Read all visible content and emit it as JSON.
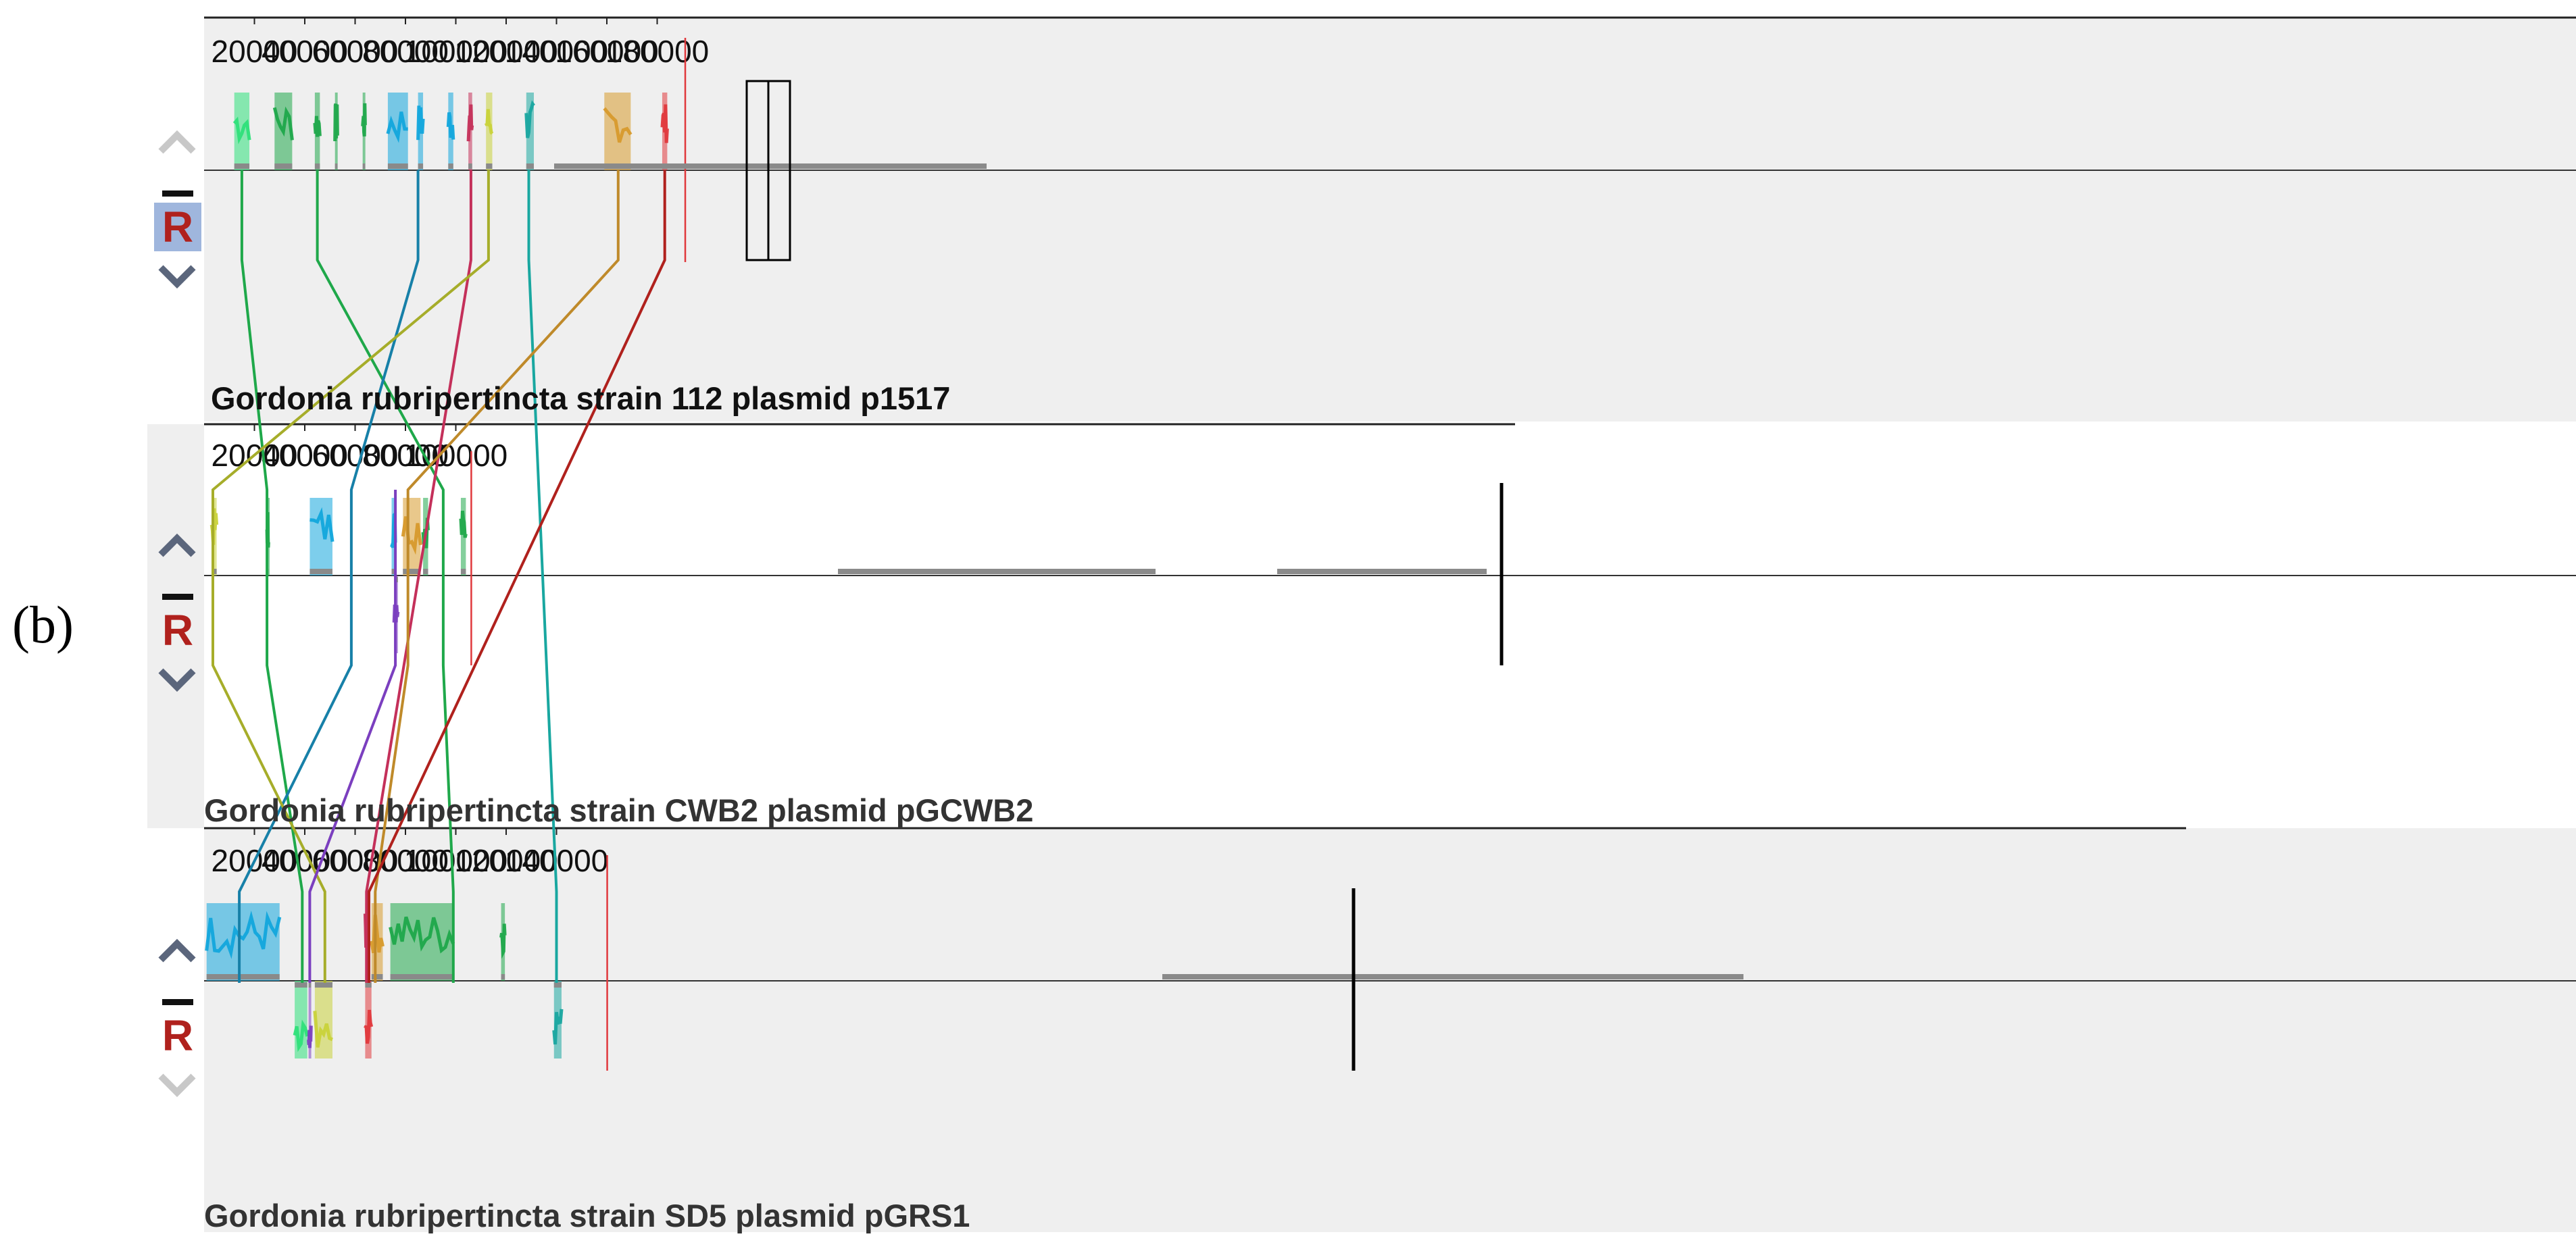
{
  "figure_label": "(b)",
  "control_labels": {
    "reorder": "R"
  },
  "tracks": [
    {
      "id": "p1517",
      "title": "Gordonia rubripertincta strain 112 plasmid p1517",
      "ticks": [
        "20000",
        "40000",
        "60000",
        "80000",
        "100000",
        "120000",
        "140000",
        "160000",
        "180000"
      ],
      "length_bp": 189000,
      "selected": true,
      "blocks": [
        {
          "color": "#2ee07a",
          "start": 12000,
          "end": 18000,
          "strand": "+"
        },
        {
          "color": "#1fa84a",
          "start": 28000,
          "end": 35000,
          "strand": "+"
        },
        {
          "color": "#1fa84a",
          "start": 44000,
          "end": 46000,
          "strand": "+"
        },
        {
          "color": "#1fa84a",
          "start": 52000,
          "end": 53000,
          "strand": "+"
        },
        {
          "color": "#1fa84a",
          "start": 63000,
          "end": 64000,
          "strand": "+"
        },
        {
          "color": "#12a6dc",
          "start": 73000,
          "end": 81000,
          "strand": "+"
        },
        {
          "color": "#12a6dc",
          "start": 85000,
          "end": 87000,
          "strand": "+"
        },
        {
          "color": "#12a6dc",
          "start": 97000,
          "end": 99000,
          "strand": "+"
        },
        {
          "color": "#c4305a",
          "start": 105000,
          "end": 106500,
          "strand": "+"
        },
        {
          "color": "#c9d23a",
          "start": 112000,
          "end": 114500,
          "strand": "+"
        },
        {
          "color": "#19a7a0",
          "start": 128000,
          "end": 131000,
          "strand": "+"
        },
        {
          "color": "#d79a2c",
          "start": 159000,
          "end": 169500,
          "strand": "+"
        },
        {
          "color": "#e0383c",
          "start": 182000,
          "end": 184000,
          "strand": "+"
        }
      ]
    },
    {
      "id": "pGCWB2",
      "title": "Gordonia rubripertincta strain CWB2 plasmid pGCWB2",
      "ticks": [
        "20000",
        "40000",
        "60000",
        "80000",
        "100000"
      ],
      "length_bp": 104000,
      "selected": false,
      "blocks": [
        {
          "color": "#c9d23a",
          "start": 3000,
          "end": 5000,
          "strand": "+"
        },
        {
          "color": "#1fa84a",
          "start": 25000,
          "end": 25600,
          "strand": "+"
        },
        {
          "color": "#12a6dc",
          "start": 42000,
          "end": 51000,
          "strand": "+"
        },
        {
          "color": "#12a6dc",
          "start": 74500,
          "end": 76000,
          "strand": "+"
        },
        {
          "color": "#7b3fbf",
          "start": 75500,
          "end": 77000,
          "strand": "-"
        },
        {
          "color": "#d79a2c",
          "start": 79000,
          "end": 86000,
          "strand": "+"
        },
        {
          "color": "#1fa84a",
          "start": 87000,
          "end": 89000,
          "strand": "+"
        },
        {
          "color": "#1fa84a",
          "start": 102000,
          "end": 104000,
          "strand": "+"
        }
      ]
    },
    {
      "id": "pGRS1",
      "title": "Gordonia rubripertincta strain SD5 plasmid pGRS1",
      "ticks": [
        "20000",
        "40000",
        "60000",
        "80000",
        "100000",
        "120000",
        "140000"
      ],
      "length_bp": 158000,
      "selected": false,
      "blocks": [
        {
          "color": "#12a6dc",
          "start": 1000,
          "end": 30000,
          "strand": "+"
        },
        {
          "color": "#2ee07a",
          "start": 36000,
          "end": 41000,
          "strand": "-"
        },
        {
          "color": "#7b3fbf",
          "start": 41500,
          "end": 42500,
          "strand": "-"
        },
        {
          "color": "#c9d23a",
          "start": 44000,
          "end": 51000,
          "strand": "-"
        },
        {
          "color": "#e0383c",
          "start": 64000,
          "end": 66500,
          "strand": "-"
        },
        {
          "color": "#c4305a",
          "start": 64000,
          "end": 65000,
          "strand": "+"
        },
        {
          "color": "#d79a2c",
          "start": 66500,
          "end": 71000,
          "strand": "+"
        },
        {
          "color": "#1fa84a",
          "start": 74000,
          "end": 99000,
          "strand": "+"
        },
        {
          "color": "#1fa84a",
          "start": 118000,
          "end": 119500,
          "strand": "+"
        },
        {
          "color": "#19a7a0",
          "start": 139000,
          "end": 142000,
          "strand": "-"
        }
      ]
    }
  ],
  "connections": [
    {
      "color": "#1fa84a",
      "a": 15000,
      "b": 25000,
      "c": 39000
    },
    {
      "color": "#1fa84a",
      "a": 45000,
      "b": 95000,
      "c": 99000
    },
    {
      "color": "#1780a8",
      "a": 85000,
      "b": 58500,
      "c": 14000
    },
    {
      "color": "#c4305a",
      "a": 106000,
      "c": 64500
    },
    {
      "color": "#a6ad2a",
      "a": 113000,
      "b": 3500,
      "c": 48000
    },
    {
      "color": "#19a7a0",
      "a": 129000,
      "c": 140000
    },
    {
      "color": "#bf8a2a",
      "a": 164500,
      "b": 81000,
      "c": 68000
    },
    {
      "color": "#b0211d",
      "a": 183000,
      "c": 65500
    },
    {
      "color": "#7b3fbf",
      "b": 76000,
      "c": 42000
    }
  ]
}
